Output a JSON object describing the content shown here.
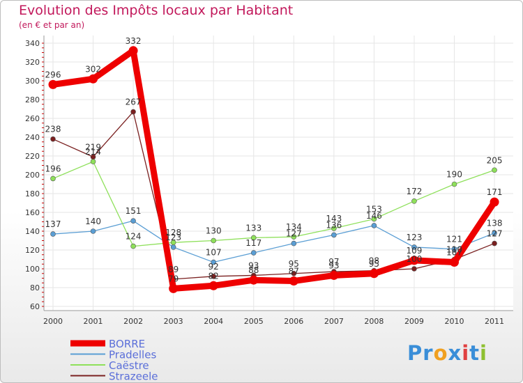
{
  "chart_data": {
    "type": "line",
    "title": "Evolution des Impôts locaux par Habitant",
    "subtitle": "(en € et par an)",
    "x": [
      "2000",
      "2001",
      "2002",
      "2003",
      "2004",
      "2005",
      "2006",
      "2007",
      "2008",
      "2009",
      "2010",
      "2011"
    ],
    "ylim": [
      60,
      340
    ],
    "yticks": [
      60,
      80,
      100,
      120,
      140,
      160,
      180,
      200,
      220,
      240,
      260,
      280,
      300,
      320,
      340
    ],
    "series": [
      {
        "name": "BORRE",
        "color": "#ee0000",
        "values": [
          296,
          302,
          332,
          79,
          82,
          88,
          87,
          93,
          95,
          109,
          107,
          171
        ],
        "labels": [
          "296",
          "302",
          "332",
          "79",
          "82",
          "88",
          "87",
          "93",
          "95",
          "109",
          "107",
          "171"
        ]
      },
      {
        "name": "Pradelles",
        "color": "#5a9ed4",
        "values": [
          137,
          140,
          151,
          123,
          107,
          117,
          127,
          136,
          146,
          123,
          121,
          138
        ],
        "labels": [
          "137",
          "140",
          "151",
          "123",
          "107",
          "117",
          "127",
          "136",
          "146",
          "123",
          "121",
          "138"
        ]
      },
      {
        "name": "Caëstre",
        "color": "#8ee05a",
        "values": [
          196,
          214,
          124,
          128,
          130,
          133,
          134,
          143,
          153,
          172,
          190,
          205
        ],
        "labels": [
          "196",
          "214",
          "124",
          "128",
          "130",
          "133",
          "134",
          "143",
          "153",
          "172",
          "190",
          "205"
        ]
      },
      {
        "name": "Strazeele",
        "color": "#7a2020",
        "values": [
          238,
          219,
          267,
          89,
          92,
          93,
          95,
          97,
          98,
          100,
          110,
          127
        ],
        "labels": [
          "238",
          "219",
          "267",
          "89",
          "92",
          "93",
          "95",
          "97",
          "98",
          "100",
          "110",
          "127"
        ]
      }
    ]
  },
  "logo": {
    "parts": [
      "Pr",
      "o",
      "x",
      "i",
      "t",
      "i"
    ],
    "colors": [
      "#3a8ed8",
      "#f0a020",
      "#3a8ed8",
      "#e04040",
      "#3a8ed8",
      "#8ec030"
    ]
  }
}
